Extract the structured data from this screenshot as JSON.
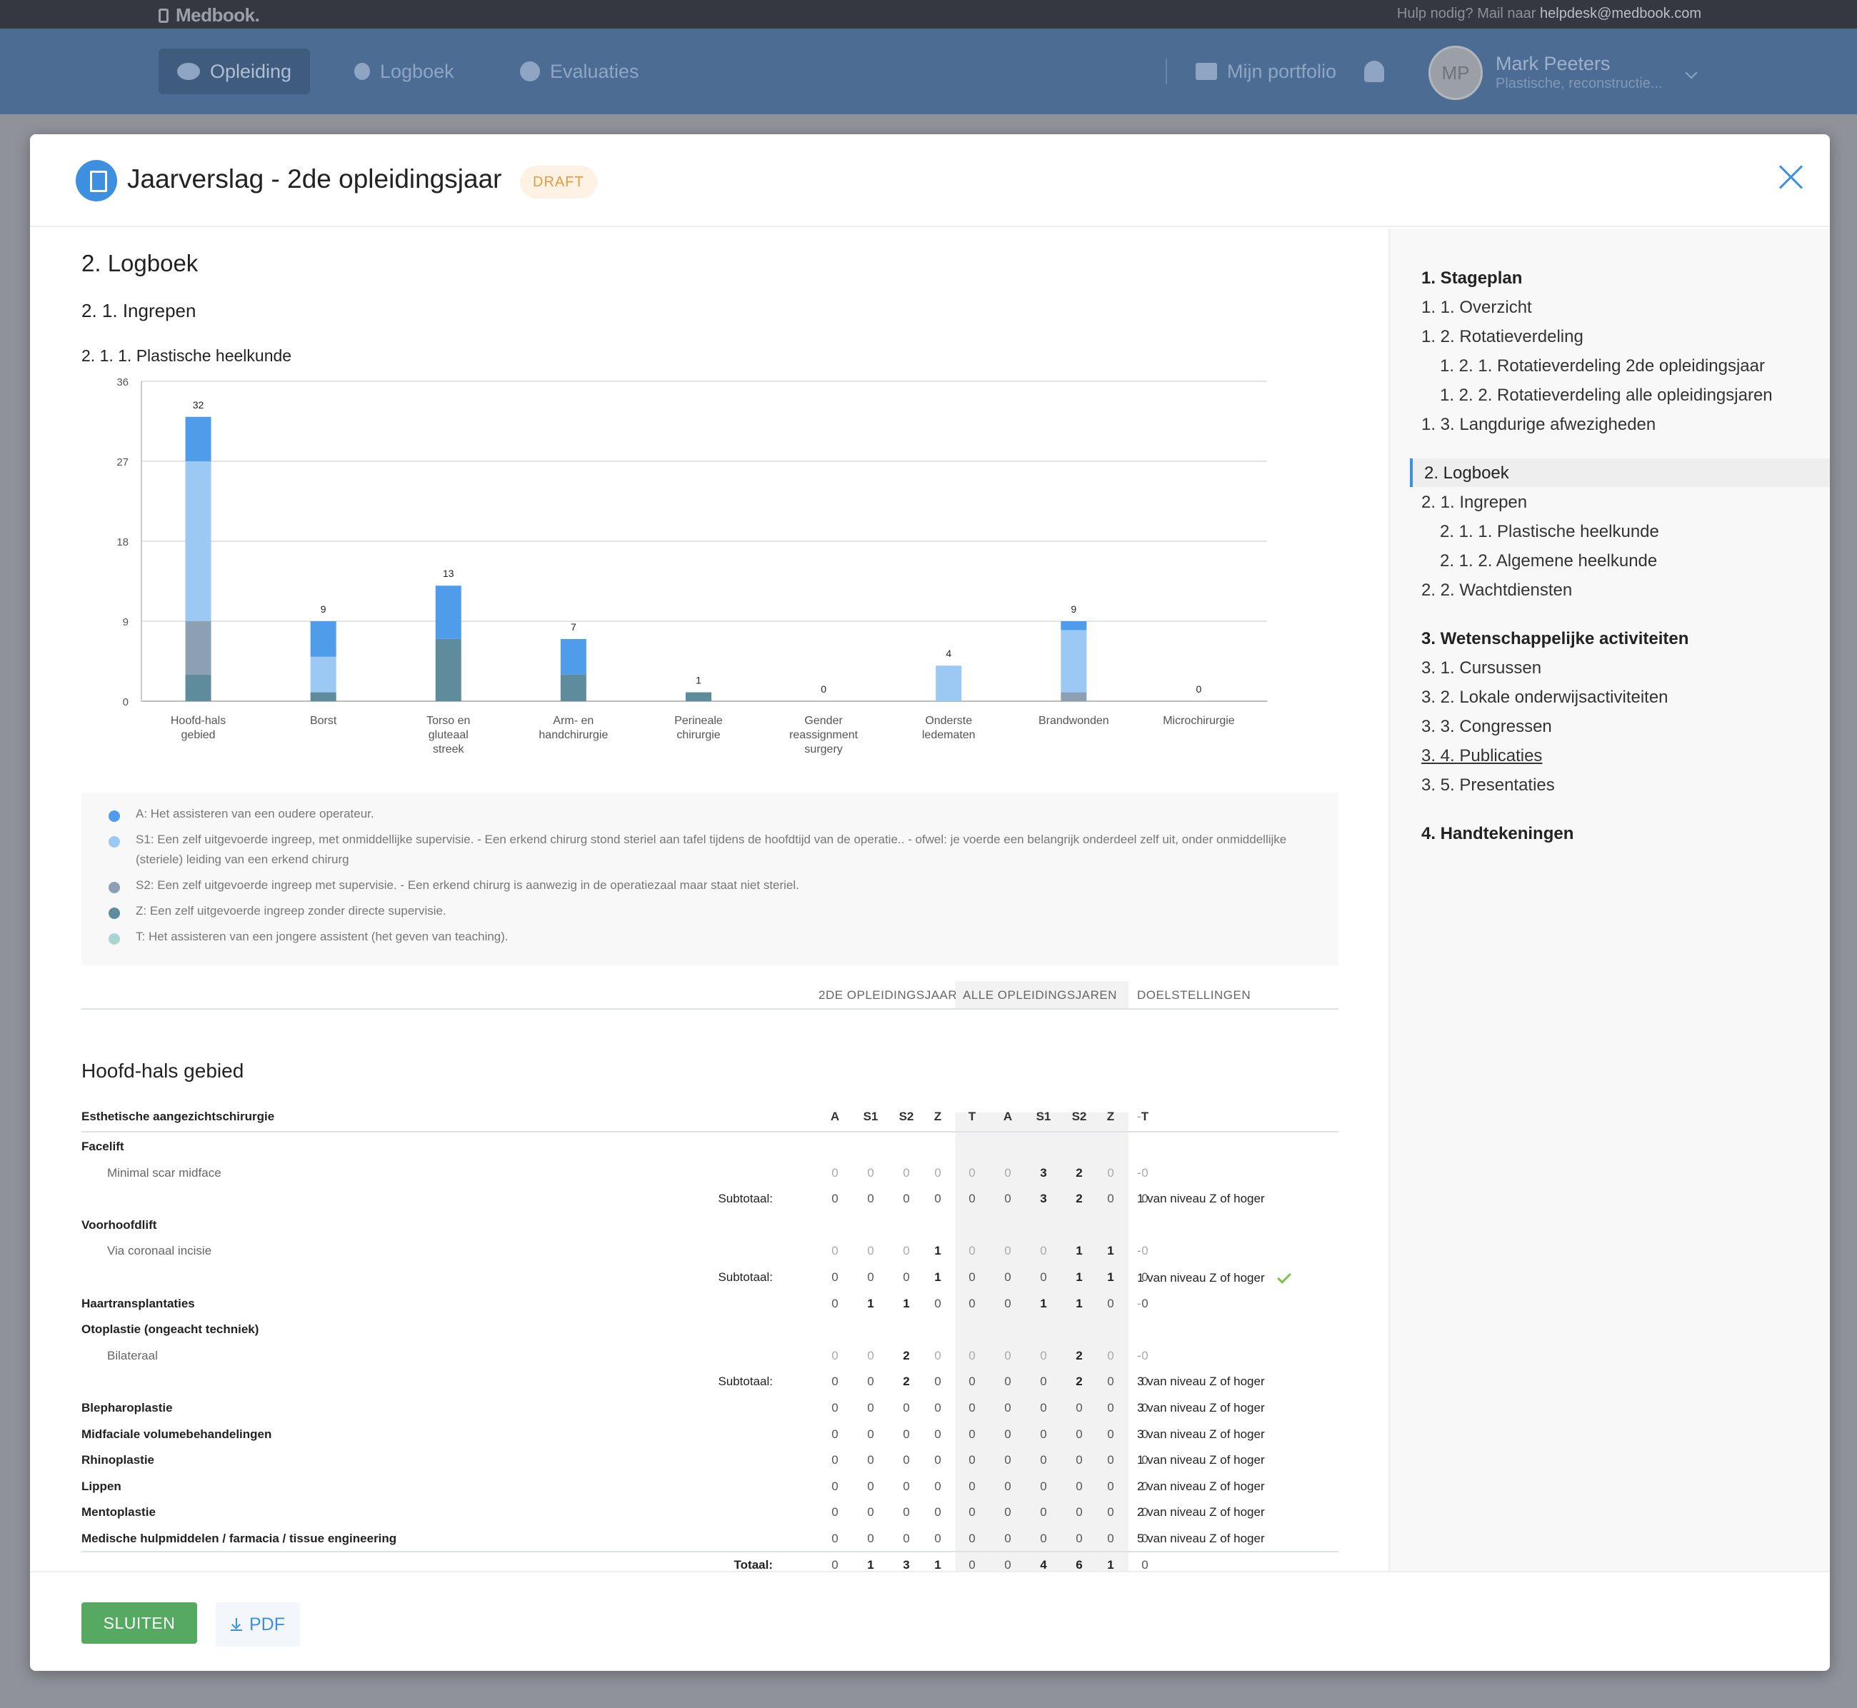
{
  "topbar": {
    "brand": "Medbook.",
    "help_prefix": "Hulp nodig? Mail naar ",
    "help_email": "helpdesk@medbook.com"
  },
  "nav": {
    "items": [
      {
        "label": "Opleiding",
        "icon": "graduation-cap-icon",
        "active": true
      },
      {
        "label": "Logboek",
        "icon": "stethoscope-icon"
      },
      {
        "label": "Evaluaties",
        "icon": "check-circle-icon"
      }
    ],
    "portfolio": "Mijn portfolio",
    "user": {
      "initials": "MP",
      "name": "Mark Peeters",
      "role": "Plastische, reconstructie..."
    }
  },
  "modal": {
    "title": "Jaarverslag - 2de opleidingsjaar",
    "badge": "DRAFT"
  },
  "content": {
    "h1": "2. Logboek",
    "h2": "2. 1. Ingrepen",
    "h3": "2. 1. 1. Plastische heelkunde"
  },
  "chart_data": {
    "type": "bar",
    "stacked": true,
    "title": "",
    "ylim": [
      0,
      36
    ],
    "yticks": [
      0,
      9,
      18,
      27,
      36
    ],
    "grid": true,
    "categories": [
      "Hoofd-hals gebied",
      "Borst",
      "Torso en gluteaal streek",
      "Arm- en handchirurgie",
      "Perineale chirurgie",
      "Gender reassignment surgery",
      "Onderste ledematen",
      "Brandwonden",
      "Microchirurgie"
    ],
    "totals": [
      32,
      9,
      13,
      7,
      1,
      0,
      4,
      9,
      0
    ],
    "series": [
      {
        "name": "Z",
        "color": "#5f8c9c",
        "values": [
          3,
          1,
          7,
          3,
          1,
          0,
          0,
          0,
          0
        ]
      },
      {
        "name": "S2",
        "color": "#8c9fb3",
        "values": [
          6,
          0,
          0,
          0,
          0,
          0,
          0,
          1,
          0
        ]
      },
      {
        "name": "S1",
        "color": "#9cc9f4",
        "values": [
          18,
          4,
          0,
          0,
          0,
          0,
          4,
          7,
          0
        ]
      },
      {
        "name": "A",
        "color": "#4e9cea",
        "values": [
          5,
          4,
          6,
          4,
          0,
          0,
          0,
          1,
          0
        ]
      },
      {
        "name": "T",
        "color": "#a9d6cf",
        "values": [
          0,
          0,
          0,
          0,
          0,
          0,
          0,
          0,
          0
        ]
      }
    ]
  },
  "legend": [
    {
      "color": "#4e9cea",
      "text": "A: Het assisteren van een oudere operateur."
    },
    {
      "color": "#9cc9f4",
      "text": "S1: Een zelf uitgevoerde ingreep, met onmiddellijke supervisie. - Een erkend chirurg stond steriel aan tafel tijdens de hoofdtijd van de operatie.. - ofwel: je voerde een belangrijk onderdeel zelf uit, onder onmiddellijke (steriele) leiding van een erkend chirurg"
    },
    {
      "color": "#8c9fb3",
      "text": "S2: Een zelf uitgevoerde ingreep met supervisie. - Een erkend chirurg is aanwezig in de operatiezaal maar staat niet steriel."
    },
    {
      "color": "#5f8c9c",
      "text": "Z: Een zelf uitgevoerde ingreep zonder directe supervisie."
    },
    {
      "color": "#a9d6cf",
      "text": "T: Het assisteren van een jongere assistent (het geven van teaching)."
    }
  ],
  "columns": {
    "year": "2DE OPLEIDINGSJAAR",
    "all": "ALLE OPLEIDINGSJAREN",
    "goals": "DOELSTELLINGEN"
  },
  "table": {
    "section": "Hoofd-hals gebied",
    "group": "Esthetische aangezichtschirurgie",
    "headers": [
      "A",
      "S1",
      "S2",
      "Z",
      "T",
      "A",
      "S1",
      "S2",
      "Z",
      "T"
    ],
    "header_goal": "-",
    "rows": [
      {
        "label": "Facelift",
        "kind": "group"
      },
      {
        "label": "Minimal scar midface",
        "kind": "item",
        "vals": [
          "0",
          "0",
          "0",
          "0",
          "0",
          "0",
          "3",
          "2",
          "0",
          "0"
        ],
        "goal": "-"
      },
      {
        "label": "Subtotaal:",
        "kind": "sub",
        "vals": [
          "0",
          "0",
          "0",
          "0",
          "0",
          "0",
          "3",
          "2",
          "0",
          "0"
        ],
        "goal": "1 van niveau Z of hoger"
      },
      {
        "label": "Voorhoofdlift",
        "kind": "group"
      },
      {
        "label": "Via coronaal incisie",
        "kind": "item",
        "vals": [
          "0",
          "0",
          "0",
          "1",
          "0",
          "0",
          "0",
          "1",
          "1",
          "0"
        ],
        "goal": "-"
      },
      {
        "label": "Subtotaal:",
        "kind": "sub",
        "vals": [
          "0",
          "0",
          "0",
          "1",
          "0",
          "0",
          "0",
          "1",
          "1",
          "0"
        ],
        "goal": "1 van niveau Z of hoger",
        "check": true
      },
      {
        "label": "Haartransplantaties",
        "kind": "top",
        "vals": [
          "0",
          "1",
          "1",
          "0",
          "0",
          "0",
          "1",
          "1",
          "0",
          "0"
        ],
        "goal": "-"
      },
      {
        "label": "Otoplastie (ongeacht techniek)",
        "kind": "group"
      },
      {
        "label": "Bilateraal",
        "kind": "item",
        "vals": [
          "0",
          "0",
          "2",
          "0",
          "0",
          "0",
          "0",
          "2",
          "0",
          "0"
        ],
        "goal": "-"
      },
      {
        "label": "Subtotaal:",
        "kind": "sub",
        "vals": [
          "0",
          "0",
          "2",
          "0",
          "0",
          "0",
          "0",
          "2",
          "0",
          "0"
        ],
        "goal": "3 van niveau Z of hoger"
      },
      {
        "label": "Blepharoplastie",
        "kind": "top",
        "vals": [
          "0",
          "0",
          "0",
          "0",
          "0",
          "0",
          "0",
          "0",
          "0",
          "0"
        ],
        "goal": "3 van niveau Z of hoger"
      },
      {
        "label": "Midfaciale volumebehandelingen",
        "kind": "top",
        "vals": [
          "0",
          "0",
          "0",
          "0",
          "0",
          "0",
          "0",
          "0",
          "0",
          "0"
        ],
        "goal": "3 van niveau Z of hoger"
      },
      {
        "label": "Rhinoplastie",
        "kind": "top",
        "vals": [
          "0",
          "0",
          "0",
          "0",
          "0",
          "0",
          "0",
          "0",
          "0",
          "0"
        ],
        "goal": "1 van niveau Z of hoger"
      },
      {
        "label": "Lippen",
        "kind": "top",
        "vals": [
          "0",
          "0",
          "0",
          "0",
          "0",
          "0",
          "0",
          "0",
          "0",
          "0"
        ],
        "goal": "2 van niveau Z of hoger"
      },
      {
        "label": "Mentoplastie",
        "kind": "top",
        "vals": [
          "0",
          "0",
          "0",
          "0",
          "0",
          "0",
          "0",
          "0",
          "0",
          "0"
        ],
        "goal": "2 van niveau Z of hoger"
      },
      {
        "label": "Medische hulpmiddelen / farmacia / tissue engineering",
        "kind": "top",
        "vals": [
          "0",
          "0",
          "0",
          "0",
          "0",
          "0",
          "0",
          "0",
          "0",
          "0"
        ],
        "goal": "5 van niveau Z of hoger"
      },
      {
        "label": "Totaal:",
        "kind": "total",
        "vals": [
          "0",
          "1",
          "3",
          "1",
          "0",
          "0",
          "4",
          "6",
          "1",
          "0"
        ],
        "goal": ""
      }
    ]
  },
  "toc": [
    {
      "label": "1. Stageplan",
      "lvl": 0,
      "b": true
    },
    {
      "label": "1. 1. Overzicht",
      "lvl": 0
    },
    {
      "label": "1. 2. Rotatieverdeling",
      "lvl": 0
    },
    {
      "label": "1. 2. 1. Rotatieverdeling 2de opleidingsjaar",
      "lvl": 1
    },
    {
      "label": "1. 2. 2. Rotatieverdeling alle opleidingsjaren",
      "lvl": 1
    },
    {
      "label": "1. 3. Langdurige afwezigheden",
      "lvl": 0
    },
    {
      "label": "2. Logboek",
      "lvl": 0,
      "active": true
    },
    {
      "label": "2. 1. Ingrepen",
      "lvl": 0
    },
    {
      "label": "2. 1. 1. Plastische heelkunde",
      "lvl": 1
    },
    {
      "label": "2. 1. 2. Algemene heelkunde",
      "lvl": 1
    },
    {
      "label": "2. 2. Wachtdiensten",
      "lvl": 0
    },
    {
      "label": "3. Wetenschappelijke activiteiten",
      "lvl": 0,
      "b": true
    },
    {
      "label": "3. 1. Cursussen",
      "lvl": 0
    },
    {
      "label": "3. 2. Lokale onderwijsactiviteiten",
      "lvl": 0
    },
    {
      "label": "3. 3. Congressen",
      "lvl": 0
    },
    {
      "label": "3. 4. Publicaties",
      "lvl": 0,
      "u": true
    },
    {
      "label": "3. 5. Presentaties",
      "lvl": 0
    },
    {
      "label": "4. Handtekeningen",
      "lvl": 0,
      "b": true
    }
  ],
  "footer": {
    "close": "SLUITEN",
    "pdf": "PDF"
  }
}
